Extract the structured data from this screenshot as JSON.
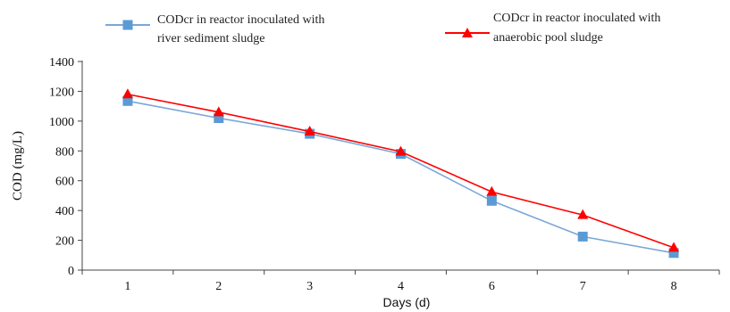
{
  "chart_data": {
    "type": "line",
    "title": "",
    "xlabel": "Days (d)",
    "ylabel": "COD (mg/L)",
    "categories": [
      "1",
      "2",
      "3",
      "4",
      "6",
      "7",
      "8"
    ],
    "ylim": [
      0,
      1400
    ],
    "yticks": [
      "0",
      "200",
      "400",
      "600",
      "800",
      "1000",
      "1200",
      "1400"
    ],
    "grid": false,
    "legend_position": "top",
    "series": [
      {
        "name_lines": [
          "CODcr in reactor inoculated with",
          "river sediment sludge"
        ],
        "values": [
          1135,
          1020,
          915,
          780,
          465,
          225,
          115
        ],
        "color": "#7ba7d8",
        "marker_color": "#5b9bd5",
        "marker": "square"
      },
      {
        "name_lines": [
          "CODcr in reactor inoculated with",
          "anaerobic pool sludge"
        ],
        "values": [
          1180,
          1060,
          930,
          795,
          525,
          370,
          150
        ],
        "color": "#ff0000",
        "marker_color": "#ff0000",
        "marker": "triangle"
      }
    ]
  }
}
